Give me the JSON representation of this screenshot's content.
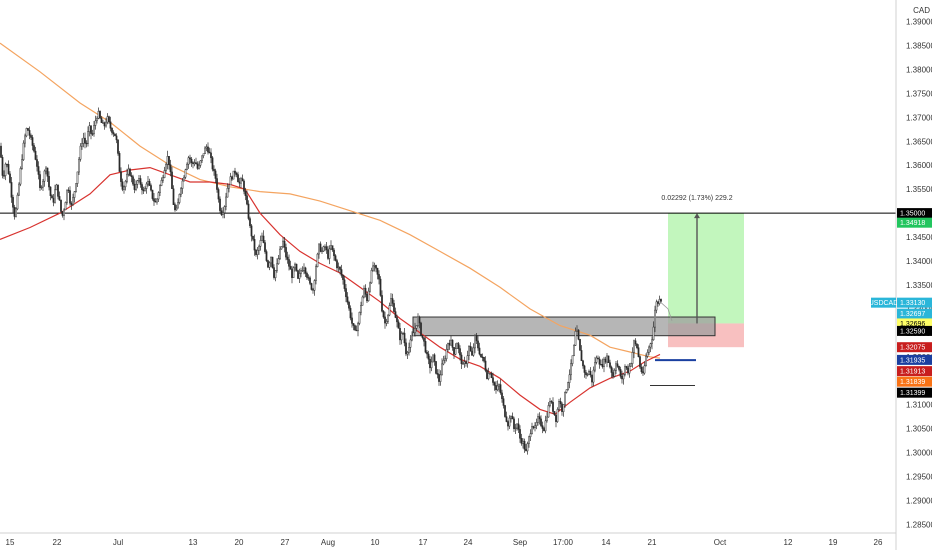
{
  "chart_data": {
    "type": "candlestick",
    "currency_label": "CAD",
    "symbol_label": "USDCAD",
    "x_tick_labels": [
      "15",
      "22",
      "Jul",
      "13",
      "20",
      "27",
      "Aug",
      "10",
      "17",
      "24",
      "Sep",
      "17:00",
      "14",
      "21",
      "Oct",
      "12",
      "19",
      "26"
    ],
    "y_tick_labels": [
      "1.39000",
      "1.38500",
      "1.38000",
      "1.37500",
      "1.37000",
      "1.36500",
      "1.36000",
      "1.35500",
      "1.35000",
      "1.34500",
      "1.34000",
      "1.33500",
      "1.33000",
      "1.32500",
      "1.32000",
      "1.31500",
      "1.31000",
      "1.30500",
      "1.30000",
      "1.29500",
      "1.29000",
      "1.28500"
    ],
    "y_tick_values": [
      1.39,
      1.385,
      1.38,
      1.375,
      1.37,
      1.365,
      1.36,
      1.355,
      1.35,
      1.345,
      1.34,
      1.335,
      1.33,
      1.325,
      1.32,
      1.315,
      1.31,
      1.305,
      1.3,
      1.295,
      1.29,
      1.285
    ],
    "ylim": [
      1.2832,
      1.3945
    ],
    "price_path": [
      [
        0,
        1.364
      ],
      [
        3,
        1.357
      ],
      [
        6,
        1.361
      ],
      [
        9,
        1.358
      ],
      [
        12,
        1.353
      ],
      [
        15,
        1.349
      ],
      [
        18,
        1.354
      ],
      [
        21,
        1.36
      ],
      [
        24,
        1.365
      ],
      [
        27,
        1.368
      ],
      [
        30,
        1.366
      ],
      [
        34,
        1.363
      ],
      [
        37,
        1.36
      ],
      [
        40,
        1.355
      ],
      [
        43,
        1.357
      ],
      [
        46,
        1.36
      ],
      [
        50,
        1.354
      ],
      [
        53,
        1.352
      ],
      [
        56,
        1.356
      ],
      [
        59,
        1.353
      ],
      [
        62,
        1.349
      ],
      [
        65,
        1.352
      ],
      [
        68,
        1.356
      ],
      [
        71,
        1.351
      ],
      [
        74,
        1.354
      ],
      [
        77,
        1.358
      ],
      [
        80,
        1.363
      ],
      [
        83,
        1.366
      ],
      [
        86,
        1.364
      ],
      [
        89,
        1.368
      ],
      [
        92,
        1.366
      ],
      [
        95,
        1.369
      ],
      [
        98,
        1.371
      ],
      [
        101,
        1.369
      ],
      [
        104,
        1.368
      ],
      [
        107,
        1.37
      ],
      [
        110,
        1.368
      ],
      [
        113,
        1.367
      ],
      [
        116,
        1.366
      ],
      [
        118,
        1.362
      ],
      [
        120,
        1.358
      ],
      [
        123,
        1.355
      ],
      [
        126,
        1.357
      ],
      [
        129,
        1.359
      ],
      [
        132,
        1.357
      ],
      [
        135,
        1.355
      ],
      [
        138,
        1.357
      ],
      [
        141,
        1.356
      ],
      [
        144,
        1.354
      ],
      [
        147,
        1.357
      ],
      [
        150,
        1.355
      ],
      [
        153,
        1.353
      ],
      [
        156,
        1.352
      ],
      [
        159,
        1.355
      ],
      [
        162,
        1.357
      ],
      [
        165,
        1.36
      ],
      [
        168,
        1.362
      ],
      [
        170,
        1.359
      ],
      [
        172,
        1.355
      ],
      [
        174,
        1.351
      ],
      [
        176,
        1.35
      ],
      [
        178,
        1.352
      ],
      [
        180,
        1.355
      ],
      [
        183,
        1.357
      ],
      [
        186,
        1.36
      ],
      [
        189,
        1.362
      ],
      [
        192,
        1.36
      ],
      [
        195,
        1.361
      ],
      [
        198,
        1.359
      ],
      [
        201,
        1.361
      ],
      [
        204,
        1.363
      ],
      [
        207,
        1.364
      ],
      [
        210,
        1.362
      ],
      [
        213,
        1.359
      ],
      [
        216,
        1.357
      ],
      [
        219,
        1.352
      ],
      [
        221,
        1.35
      ],
      [
        224,
        1.351
      ],
      [
        227,
        1.355
      ],
      [
        230,
        1.357
      ],
      [
        233,
        1.358
      ],
      [
        236,
        1.359
      ],
      [
        239,
        1.356
      ],
      [
        242,
        1.357
      ],
      [
        245,
        1.354
      ],
      [
        248,
        1.35
      ],
      [
        250,
        1.347
      ],
      [
        253,
        1.344
      ],
      [
        256,
        1.341
      ],
      [
        259,
        1.343
      ],
      [
        262,
        1.345
      ],
      [
        265,
        1.342
      ],
      [
        268,
        1.339
      ],
      [
        271,
        1.341
      ],
      [
        274,
        1.337
      ],
      [
        277,
        1.339
      ],
      [
        280,
        1.342
      ],
      [
        283,
        1.344
      ],
      [
        286,
        1.341
      ],
      [
        289,
        1.339
      ],
      [
        292,
        1.337
      ],
      [
        295,
        1.339
      ],
      [
        298,
        1.336
      ],
      [
        301,
        1.338
      ],
      [
        304,
        1.339
      ],
      [
        307,
        1.337
      ],
      [
        310,
        1.335
      ],
      [
        313,
        1.334
      ],
      [
        316,
        1.339
      ],
      [
        319,
        1.343
      ],
      [
        322,
        1.342
      ],
      [
        325,
        1.343
      ],
      [
        328,
        1.341
      ],
      [
        331,
        1.343
      ],
      [
        334,
        1.341
      ],
      [
        337,
        1.339
      ],
      [
        340,
        1.338
      ],
      [
        343,
        1.336
      ],
      [
        346,
        1.333
      ],
      [
        349,
        1.33
      ],
      [
        352,
        1.327
      ],
      [
        355,
        1.325
      ],
      [
        358,
        1.327
      ],
      [
        361,
        1.331
      ],
      [
        364,
        1.334
      ],
      [
        367,
        1.332
      ],
      [
        370,
        1.336
      ],
      [
        373,
        1.339
      ],
      [
        376,
        1.338
      ],
      [
        379,
        1.336
      ],
      [
        382,
        1.33
      ],
      [
        385,
        1.327
      ],
      [
        388,
        1.329
      ],
      [
        391,
        1.332
      ],
      [
        394,
        1.33
      ],
      [
        397,
        1.327
      ],
      [
        400,
        1.324
      ],
      [
        403,
        1.325
      ],
      [
        406,
        1.321
      ],
      [
        409,
        1.322
      ],
      [
        412,
        1.324
      ],
      [
        415,
        1.326
      ],
      [
        418,
        1.328
      ],
      [
        421,
        1.325
      ],
      [
        424,
        1.323
      ],
      [
        427,
        1.32
      ],
      [
        430,
        1.318
      ],
      [
        433,
        1.32
      ],
      [
        436,
        1.317
      ],
      [
        439,
        1.315
      ],
      [
        442,
        1.318
      ],
      [
        445,
        1.32
      ],
      [
        448,
        1.323
      ],
      [
        451,
        1.323
      ],
      [
        454,
        1.321
      ],
      [
        457,
        1.323
      ],
      [
        460,
        1.32
      ],
      [
        463,
        1.318
      ],
      [
        466,
        1.319
      ],
      [
        469,
        1.322
      ],
      [
        472,
        1.32
      ],
      [
        475,
        1.324
      ],
      [
        478,
        1.322
      ],
      [
        481,
        1.32
      ],
      [
        484,
        1.319
      ],
      [
        487,
        1.316
      ],
      [
        490,
        1.317
      ],
      [
        493,
        1.315
      ],
      [
        496,
        1.313
      ],
      [
        499,
        1.314
      ],
      [
        502,
        1.311
      ],
      [
        505,
        1.308
      ],
      [
        508,
        1.306
      ],
      [
        511,
        1.308
      ],
      [
        514,
        1.305
      ],
      [
        517,
        1.306
      ],
      [
        520,
        1.303
      ],
      [
        523,
        1.302
      ],
      [
        526,
        1.3
      ],
      [
        529,
        1.303
      ],
      [
        532,
        1.306
      ],
      [
        535,
        1.305
      ],
      [
        538,
        1.307
      ],
      [
        541,
        1.306
      ],
      [
        544,
        1.305
      ],
      [
        547,
        1.308
      ],
      [
        550,
        1.311
      ],
      [
        553,
        1.309
      ],
      [
        556,
        1.307
      ],
      [
        559,
        1.311
      ],
      [
        562,
        1.309
      ],
      [
        565,
        1.312
      ],
      [
        568,
        1.315
      ],
      [
        571,
        1.318
      ],
      [
        574,
        1.322
      ],
      [
        576,
        1.326
      ],
      [
        578,
        1.324
      ],
      [
        580,
        1.321
      ],
      [
        583,
        1.318
      ],
      [
        586,
        1.316
      ],
      [
        589,
        1.317
      ],
      [
        592,
        1.315
      ],
      [
        595,
        1.319
      ],
      [
        598,
        1.32
      ],
      [
        601,
        1.318
      ],
      [
        604,
        1.319
      ],
      [
        607,
        1.32
      ],
      [
        610,
        1.318
      ],
      [
        613,
        1.316
      ],
      [
        616,
        1.319
      ],
      [
        619,
        1.317
      ],
      [
        622,
        1.315
      ],
      [
        625,
        1.318
      ],
      [
        628,
        1.317
      ],
      [
        631,
        1.319
      ],
      [
        634,
        1.323
      ],
      [
        637,
        1.322
      ],
      [
        640,
        1.318
      ],
      [
        643,
        1.316
      ],
      [
        646,
        1.32
      ],
      [
        649,
        1.322
      ],
      [
        652,
        1.324
      ],
      [
        654,
        1.327
      ],
      [
        656,
        1.332
      ],
      [
        658,
        1.331
      ],
      [
        660,
        1.333
      ],
      [
        662,
        1.331
      ]
    ],
    "ma_red": [
      [
        0,
        1.3445
      ],
      [
        30,
        1.347
      ],
      [
        60,
        1.35
      ],
      [
        90,
        1.354
      ],
      [
        110,
        1.358
      ],
      [
        130,
        1.359
      ],
      [
        150,
        1.3595
      ],
      [
        170,
        1.358
      ],
      [
        190,
        1.3565
      ],
      [
        210,
        1.3565
      ],
      [
        230,
        1.356
      ],
      [
        245,
        1.355
      ],
      [
        260,
        1.35
      ],
      [
        280,
        1.3455
      ],
      [
        300,
        1.342
      ],
      [
        320,
        1.3395
      ],
      [
        340,
        1.3375
      ],
      [
        360,
        1.3345
      ],
      [
        380,
        1.3315
      ],
      [
        400,
        1.328
      ],
      [
        420,
        1.325
      ],
      [
        440,
        1.322
      ],
      [
        460,
        1.3195
      ],
      [
        480,
        1.318
      ],
      [
        500,
        1.3155
      ],
      [
        520,
        1.312
      ],
      [
        540,
        1.309
      ],
      [
        555,
        1.308
      ],
      [
        570,
        1.3105
      ],
      [
        590,
        1.3135
      ],
      [
        610,
        1.3155
      ],
      [
        630,
        1.317
      ],
      [
        645,
        1.319
      ],
      [
        660,
        1.3205
      ]
    ],
    "ma_orange": [
      [
        0,
        1.3855
      ],
      [
        40,
        1.3795
      ],
      [
        80,
        1.373
      ],
      [
        110,
        1.369
      ],
      [
        140,
        1.364
      ],
      [
        170,
        1.36
      ],
      [
        200,
        1.357
      ],
      [
        230,
        1.3555
      ],
      [
        260,
        1.3545
      ],
      [
        290,
        1.354
      ],
      [
        320,
        1.3525
      ],
      [
        350,
        1.3505
      ],
      [
        380,
        1.3485
      ],
      [
        410,
        1.3455
      ],
      [
        440,
        1.342
      ],
      [
        470,
        1.3385
      ],
      [
        500,
        1.3345
      ],
      [
        530,
        1.33
      ],
      [
        560,
        1.3265
      ],
      [
        590,
        1.3245
      ],
      [
        610,
        1.322
      ],
      [
        630,
        1.321
      ],
      [
        650,
        1.32
      ],
      [
        660,
        1.3197
      ]
    ],
    "target_measure_label": "0.02292 (1.73%) 229.2",
    "horizontal_level": 1.35,
    "demand_zone": [
      1.3244,
      1.3283
    ],
    "long_position": {
      "entry": 1.32696,
      "target": 1.35,
      "stop": 1.322
    },
    "price_tags": [
      {
        "label": "1.35000",
        "value": 1.35,
        "bg": "#000000",
        "fg": "#ffffff"
      },
      {
        "label": "1.34918",
        "value": 1.348,
        "bg": "#22c55e",
        "fg": "#ffffff"
      },
      {
        "label": "USDCAD",
        "value": 1.3313,
        "bg": "#2ab6d9",
        "fg": "#ffffff",
        "is_symbol": true
      },
      {
        "label": "1.33130",
        "value": 1.3313,
        "bg": "#2ab6d9",
        "fg": "#ffffff"
      },
      {
        "label": "1.32697",
        "value": 1.329,
        "bg": "#2ab6d9",
        "fg": "#ffffff"
      },
      {
        "label": "1.32696",
        "value": 1.32696,
        "bg": "#ffff66",
        "fg": "#000000"
      },
      {
        "label": "1.32590",
        "value": 1.3254,
        "bg": "#000000",
        "fg": "#ffffff"
      },
      {
        "label": "1.32075",
        "value": 1.322,
        "bg": "#c81e1e",
        "fg": "#ffffff"
      },
      {
        "label": "1.31935",
        "value": 1.31935,
        "bg": "#1a3fa0",
        "fg": "#ffffff"
      },
      {
        "label": "1.31913",
        "value": 1.317,
        "bg": "#c81e1e",
        "fg": "#ffffff"
      },
      {
        "label": "1.31839",
        "value": 1.3148,
        "bg": "#f97316",
        "fg": "#ffffff"
      },
      {
        "label": "1.31399",
        "value": 1.3125,
        "bg": "#000000",
        "fg": "#ffffff"
      }
    ],
    "colors": {
      "candles": "#2b2b2b",
      "ma_red": "#d8332f",
      "ma_orange": "#f4a460",
      "zone_fill": "#9e9e9e",
      "profit_fill": "#b7f5b2",
      "loss_fill": "#f7b5b5",
      "level_line": "#000000",
      "blue_line": "#1a3fa0"
    }
  }
}
